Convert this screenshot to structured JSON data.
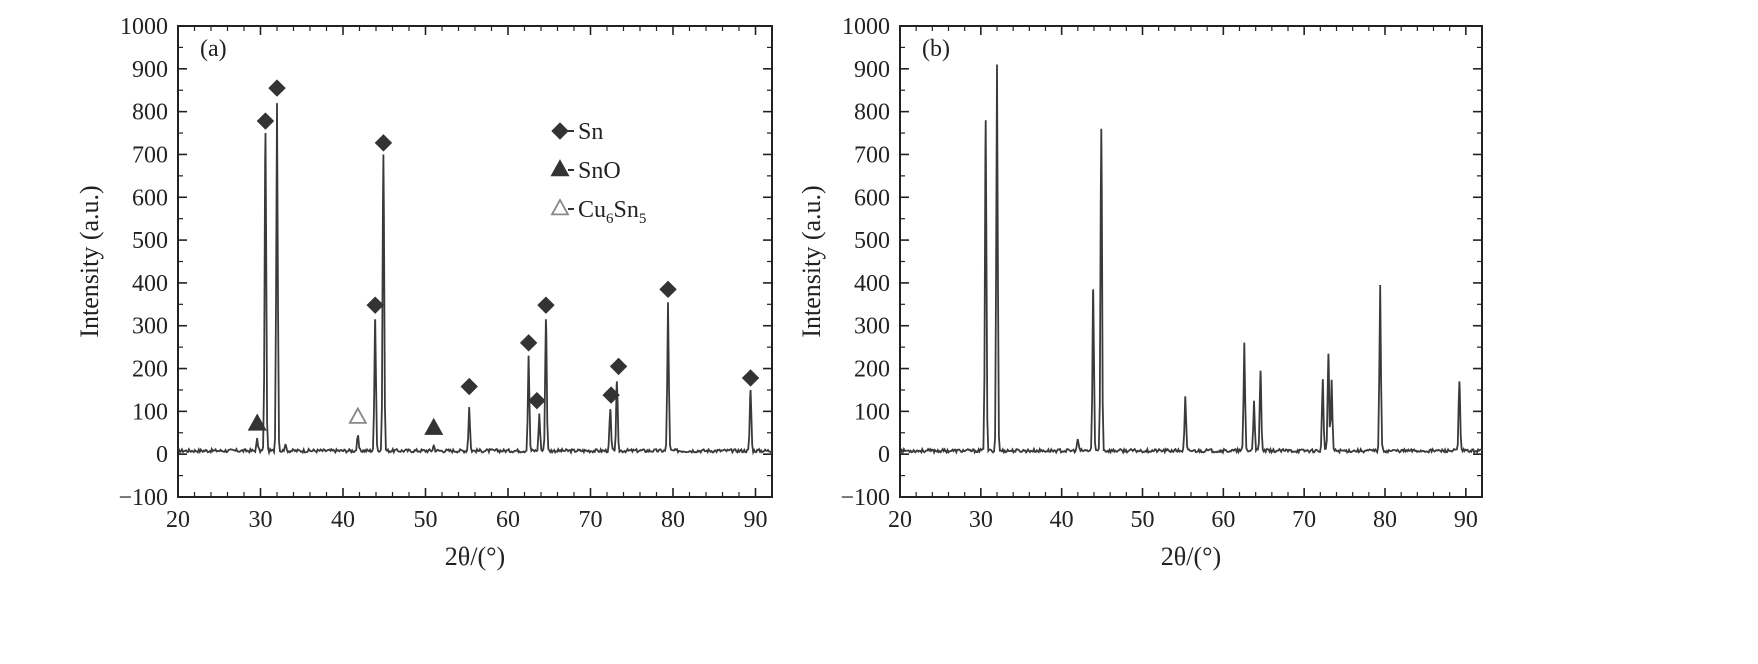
{
  "chart_data": [
    {
      "type": "line",
      "panel_label": "(a)",
      "xlabel": "2θ/(°)",
      "ylabel": "Intensity (a.u.)",
      "xlim": [
        20,
        92
      ],
      "ylim": [
        -100,
        1000
      ],
      "xticks": [
        20,
        30,
        40,
        50,
        60,
        70,
        80,
        90
      ],
      "yticks": [
        -100,
        0,
        100,
        200,
        300,
        400,
        500,
        600,
        700,
        800,
        900,
        1000
      ],
      "baseline": 8,
      "peaks": [
        {
          "x": 29.6,
          "y": 35
        },
        {
          "x": 30.6,
          "y": 750
        },
        {
          "x": 32.0,
          "y": 820
        },
        {
          "x": 33.0,
          "y": 22
        },
        {
          "x": 41.8,
          "y": 42
        },
        {
          "x": 43.9,
          "y": 315
        },
        {
          "x": 44.9,
          "y": 700
        },
        {
          "x": 51.0,
          "y": 20
        },
        {
          "x": 55.3,
          "y": 110
        },
        {
          "x": 62.5,
          "y": 230
        },
        {
          "x": 63.8,
          "y": 95
        },
        {
          "x": 64.6,
          "y": 315
        },
        {
          "x": 72.4,
          "y": 105
        },
        {
          "x": 73.2,
          "y": 170
        },
        {
          "x": 79.4,
          "y": 355
        },
        {
          "x": 89.4,
          "y": 150
        }
      ],
      "markers": [
        {
          "x": 29.6,
          "y": 72,
          "phase": "SnO"
        },
        {
          "x": 30.6,
          "y": 778,
          "phase": "Sn"
        },
        {
          "x": 32.0,
          "y": 855,
          "phase": "Sn"
        },
        {
          "x": 41.8,
          "y": 88,
          "phase": "Cu6Sn5"
        },
        {
          "x": 43.9,
          "y": 348,
          "phase": "Sn"
        },
        {
          "x": 44.9,
          "y": 727,
          "phase": "Sn"
        },
        {
          "x": 51.0,
          "y": 62,
          "phase": "SnO"
        },
        {
          "x": 55.3,
          "y": 158,
          "phase": "Sn"
        },
        {
          "x": 62.5,
          "y": 260,
          "phase": "Sn"
        },
        {
          "x": 63.5,
          "y": 125,
          "phase": "Sn"
        },
        {
          "x": 64.6,
          "y": 348,
          "phase": "Sn"
        },
        {
          "x": 72.5,
          "y": 138,
          "phase": "Sn"
        },
        {
          "x": 73.4,
          "y": 205,
          "phase": "Sn"
        },
        {
          "x": 79.4,
          "y": 385,
          "phase": "Sn"
        },
        {
          "x": 89.4,
          "y": 178,
          "phase": "Sn"
        }
      ],
      "legend": {
        "position": "upper-middle",
        "entries": [
          {
            "label": "Sn",
            "marker": "filled-diamond"
          },
          {
            "label": "SnO",
            "marker": "filled-triangle"
          },
          {
            "label_main": "Cu",
            "label_sub1": "6",
            "label_main2": "Sn",
            "label_sub2": "5",
            "marker": "open-triangle"
          }
        ]
      }
    },
    {
      "type": "line",
      "panel_label": "(b)",
      "xlabel": "2θ/(°)",
      "ylabel": "Intensity (a.u.)",
      "xlim": [
        20,
        92
      ],
      "ylim": [
        -100,
        1000
      ],
      "xticks": [
        20,
        30,
        40,
        50,
        60,
        70,
        80,
        90
      ],
      "yticks": [
        -100,
        0,
        100,
        200,
        300,
        400,
        500,
        600,
        700,
        800,
        900,
        1000
      ],
      "baseline": 8,
      "peaks": [
        {
          "x": 30.6,
          "y": 780
        },
        {
          "x": 32.0,
          "y": 910
        },
        {
          "x": 42.0,
          "y": 35
        },
        {
          "x": 43.9,
          "y": 385
        },
        {
          "x": 44.9,
          "y": 760
        },
        {
          "x": 55.3,
          "y": 135
        },
        {
          "x": 62.6,
          "y": 260
        },
        {
          "x": 63.8,
          "y": 125
        },
        {
          "x": 64.6,
          "y": 195
        },
        {
          "x": 72.3,
          "y": 175
        },
        {
          "x": 73.0,
          "y": 235
        },
        {
          "x": 73.4,
          "y": 170
        },
        {
          "x": 79.4,
          "y": 395
        },
        {
          "x": 89.2,
          "y": 170
        }
      ]
    }
  ],
  "colors": {
    "line": "#3a3a3a",
    "axis": "#222222",
    "marker": "#333333",
    "open_marker": "#888888"
  }
}
